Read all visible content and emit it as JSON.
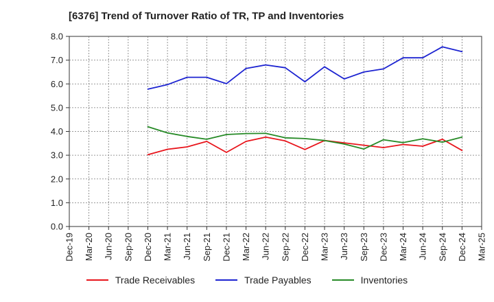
{
  "chart_data": {
    "type": "line",
    "title": "[6376]  Trend of Turnover Ratio of TR, TP and Inventories",
    "x_ticks": [
      "Dec-19",
      "Mar-20",
      "Jun-20",
      "Sep-20",
      "Dec-20",
      "Mar-21",
      "Jun-21",
      "Sep-21",
      "Dec-21",
      "Mar-22",
      "Jun-22",
      "Sep-22",
      "Dec-22",
      "Mar-23",
      "Jun-23",
      "Sep-23",
      "Dec-23",
      "Mar-24",
      "Jun-24",
      "Sep-24",
      "Dec-24",
      "Mar-25"
    ],
    "y_ticks": [
      "0.0",
      "1.0",
      "2.0",
      "3.0",
      "4.0",
      "5.0",
      "6.0",
      "7.0",
      "8.0"
    ],
    "ylim": [
      0,
      8
    ],
    "categories": [
      "Dec-20",
      "Mar-21",
      "Jun-21",
      "Sep-21",
      "Dec-21",
      "Mar-22",
      "Jun-22",
      "Sep-22",
      "Dec-22",
      "Mar-23",
      "Jun-23",
      "Sep-23",
      "Dec-23",
      "Mar-24",
      "Jun-24",
      "Sep-24",
      "Dec-24"
    ],
    "series": [
      {
        "name": "Trade Receivables",
        "color": "#e8141b",
        "values": [
          3.02,
          3.25,
          3.35,
          3.58,
          3.12,
          3.58,
          3.76,
          3.6,
          3.24,
          3.62,
          3.52,
          3.42,
          3.32,
          3.45,
          3.38,
          3.67,
          3.2
        ]
      },
      {
        "name": "Trade Payables",
        "color": "#1c23d1",
        "values": [
          5.78,
          5.97,
          6.28,
          6.28,
          6.01,
          6.65,
          6.8,
          6.68,
          6.09,
          6.72,
          6.21,
          6.5,
          6.63,
          7.1,
          7.1,
          7.56,
          7.36
        ]
      },
      {
        "name": "Inventories",
        "color": "#268a26",
        "values": [
          4.2,
          3.94,
          3.79,
          3.67,
          3.87,
          3.91,
          3.92,
          3.73,
          3.7,
          3.62,
          3.47,
          3.26,
          3.65,
          3.53,
          3.69,
          3.55,
          3.76
        ]
      }
    ],
    "grid": true,
    "legend": "bottom"
  }
}
